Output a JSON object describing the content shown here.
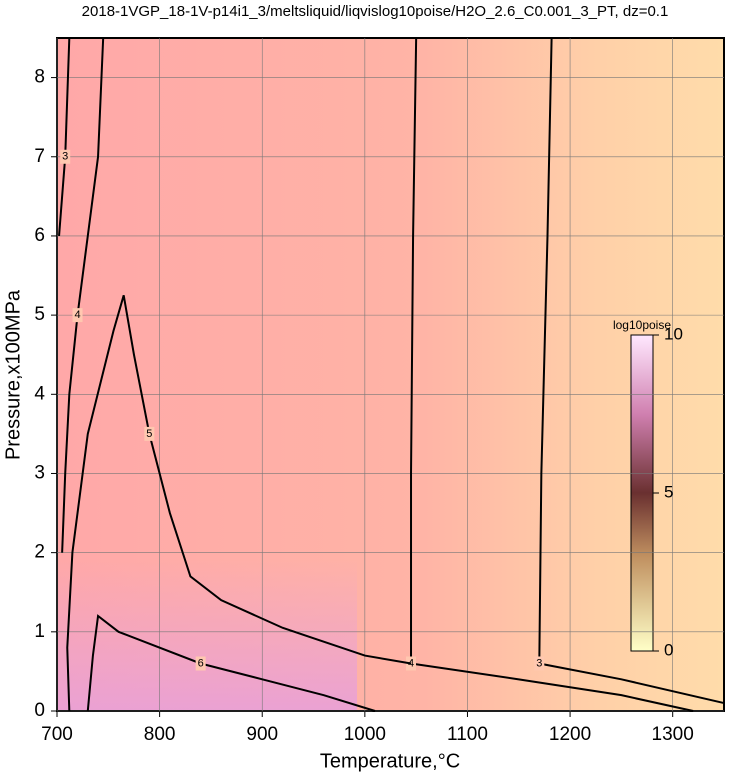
{
  "chart_data": {
    "type": "contour",
    "title": "2018-1VGP_18-1V-p14i1_3/meltsliquid/liqvislog10poise/H2O_2.6_C0.001_3_PT, dz=0.1",
    "x_label": "Temperature,°C",
    "y_label": "Pressure,x100MPa",
    "xlim": [
      700,
      1350
    ],
    "xticks": [
      700,
      800,
      900,
      1000,
      1100,
      1200,
      1300
    ],
    "ylim": [
      0,
      8.5
    ],
    "yticks": [
      0,
      1,
      2,
      3,
      4,
      5,
      6,
      7,
      8
    ],
    "grid": true,
    "colorbar": {
      "label": "log10poise",
      "lim": [
        0,
        10
      ],
      "ticks": [
        0,
        5,
        10
      ]
    },
    "contours": [
      {
        "level": 3,
        "x": [
          1182,
          1178,
          1172,
          1170,
          1250,
          1350
        ],
        "y": [
          8.5,
          6,
          3,
          0.6,
          0.4,
          0.1
        ]
      },
      {
        "level": 4,
        "x": [
          1050,
          1047,
          1045,
          1045,
          1150,
          1250,
          1320
        ],
        "y": [
          8.5,
          6,
          3,
          0.6,
          0.4,
          0.2,
          0
        ]
      },
      {
        "level": 5,
        "x": [
          712,
          710,
          715,
          730,
          755,
          765,
          775,
          790,
          810,
          830,
          860,
          920,
          1000,
          1045
        ],
        "y": [
          0,
          0.8,
          2,
          3.5,
          4.8,
          5.25,
          4.5,
          3.5,
          2.5,
          1.7,
          1.4,
          1.05,
          0.7,
          0.6
        ]
      },
      {
        "level": 6,
        "x": [
          730,
          735,
          740,
          760,
          840,
          900,
          960,
          1010
        ],
        "y": [
          0,
          0.7,
          1.2,
          1,
          0.6,
          0.4,
          0.2,
          0
        ]
      },
      {
        "level": 4,
        "x": [
          745,
          740,
          730,
          720,
          712,
          708,
          705
        ],
        "y": [
          8.5,
          7,
          6,
          5,
          4,
          3,
          2
        ]
      },
      {
        "level": 3,
        "x": [
          712,
          708,
          702
        ],
        "y": [
          8.5,
          7,
          6
        ]
      }
    ]
  }
}
